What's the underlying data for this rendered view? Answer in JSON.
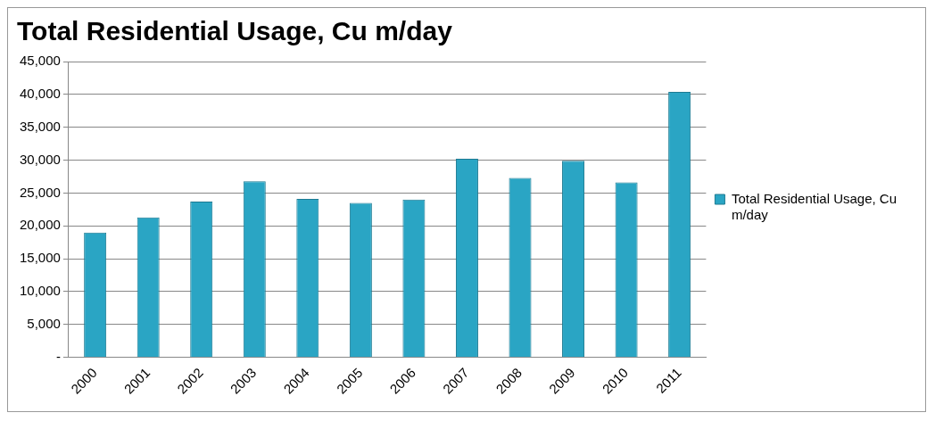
{
  "chart_data": {
    "type": "bar",
    "title": "Total Residential Usage, Cu m/day",
    "categories": [
      "2000",
      "2001",
      "2002",
      "2003",
      "2004",
      "2005",
      "2006",
      "2007",
      "2008",
      "2009",
      "2010",
      "2011"
    ],
    "series": [
      {
        "name": "Total Residential Usage, Cu m/day",
        "color": "#2aa5c4",
        "values": [
          19000,
          21300,
          23700,
          26800,
          24100,
          23500,
          24000,
          30200,
          27300,
          29900,
          26600,
          40400
        ]
      }
    ],
    "ylim": [
      0,
      45000
    ],
    "yticks": [
      {
        "value": 0,
        "label": "-"
      },
      {
        "value": 5000,
        "label": "5,000"
      },
      {
        "value": 10000,
        "label": "10,000"
      },
      {
        "value": 15000,
        "label": "15,000"
      },
      {
        "value": 20000,
        "label": "20,000"
      },
      {
        "value": 25000,
        "label": "25,000"
      },
      {
        "value": 30000,
        "label": "30,000"
      },
      {
        "value": 35000,
        "label": "35,000"
      },
      {
        "value": 40000,
        "label": "40,000"
      },
      {
        "value": 45000,
        "label": "45,000"
      }
    ],
    "grid": "y",
    "legend": "right"
  }
}
